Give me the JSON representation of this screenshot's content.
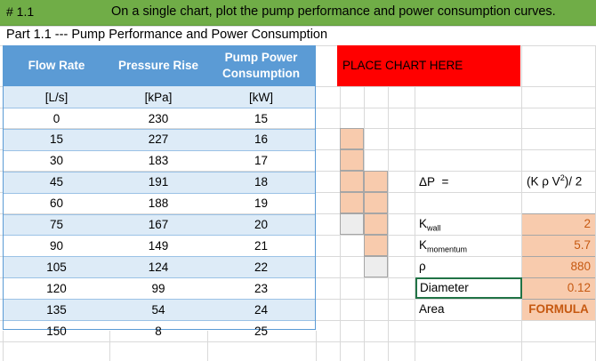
{
  "header": {
    "number": "# 1.1",
    "instruction": "On a single chart, plot the pump performance and power consumption curves."
  },
  "sheet_title": "Part 1.1 --- Pump Performance and Power Consumption",
  "table": {
    "columns": [
      "Flow Rate",
      "Pressure Rise",
      "Pump Power Consumption"
    ],
    "units": [
      "[L/s]",
      "[kPa]",
      "[kW]"
    ],
    "rows": [
      [
        "0",
        "230",
        "15"
      ],
      [
        "15",
        "227",
        "16"
      ],
      [
        "30",
        "183",
        "17"
      ],
      [
        "45",
        "191",
        "18"
      ],
      [
        "60",
        "188",
        "19"
      ],
      [
        "75",
        "167",
        "20"
      ],
      [
        "90",
        "149",
        "21"
      ],
      [
        "105",
        "124",
        "22"
      ],
      [
        "120",
        "99",
        "23"
      ],
      [
        "135",
        "54",
        "24"
      ],
      [
        "150",
        "8",
        "25"
      ]
    ]
  },
  "chart_placeholder": "PLACE CHART HERE",
  "formula": {
    "lhs": "ΔP",
    "eq": "=",
    "rhs": "(K ρ V²)/ 2"
  },
  "params": [
    {
      "label_main": "K",
      "label_sub": "wall",
      "value": "2"
    },
    {
      "label_main": "K",
      "label_sub": "momentum",
      "value": "5.7"
    },
    {
      "label_main": "ρ",
      "label_sub": "",
      "value": "880"
    },
    {
      "label_main": "Diameter",
      "label_sub": "",
      "value": "0.12"
    },
    {
      "label_main": "Area",
      "label_sub": "",
      "value": "FORMULA"
    }
  ],
  "colors": {
    "title_bar": "#70ad47",
    "table_header": "#5b9bd5",
    "table_band": "#ddebf7",
    "placeholder": "#ff0000",
    "input_cell": "#f8cbad",
    "value_text": "#c65911"
  }
}
